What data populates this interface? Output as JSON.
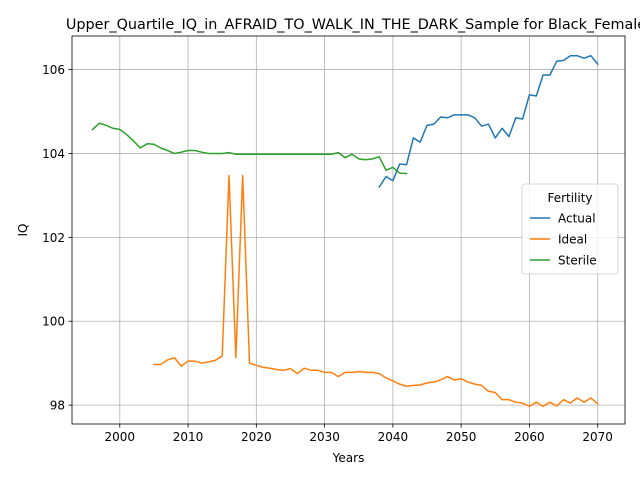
{
  "chart_data": {
    "type": "line",
    "title": "Upper_Quartile_IQ_in_AFRAID_TO_WALK_IN_THE_DARK_Sample for Black_Female",
    "xlabel": "Years",
    "ylabel": "IQ",
    "xlim": [
      1993,
      2074
    ],
    "ylim": [
      97.55,
      106.8
    ],
    "xticks": [
      2000,
      2010,
      2020,
      2030,
      2040,
      2050,
      2060,
      2070
    ],
    "yticks": [
      98,
      100,
      102,
      104,
      106
    ],
    "grid": true,
    "legend": {
      "title": "Fertility",
      "placement": "center-right"
    },
    "series": [
      {
        "name": "Actual",
        "color": "#1f77b4",
        "x": [
          2038,
          2039,
          2040,
          2041,
          2042,
          2043,
          2044,
          2045,
          2046,
          2047,
          2048,
          2049,
          2050,
          2051,
          2052,
          2053,
          2054,
          2055,
          2056,
          2057,
          2058,
          2059,
          2060,
          2061,
          2062,
          2063,
          2064,
          2065,
          2066,
          2067,
          2068,
          2069,
          2070
        ],
        "y": [
          103.2,
          103.45,
          103.35,
          103.75,
          103.73,
          104.37,
          104.27,
          104.67,
          104.7,
          104.87,
          104.85,
          104.92,
          104.92,
          104.92,
          104.85,
          104.65,
          104.7,
          104.37,
          104.6,
          104.4,
          104.85,
          104.82,
          105.4,
          105.37,
          105.87,
          105.87,
          106.2,
          106.22,
          106.33,
          106.33,
          106.27,
          106.33,
          106.13
        ]
      },
      {
        "name": "Ideal",
        "color": "#ff7f0e",
        "x": [
          2005,
          2006,
          2007,
          2008,
          2009,
          2010,
          2011,
          2012,
          2013,
          2014,
          2015,
          2016,
          2017,
          2018,
          2019,
          2020,
          2021,
          2022,
          2023,
          2024,
          2025,
          2026,
          2027,
          2028,
          2029,
          2030,
          2031,
          2032,
          2033,
          2034,
          2035,
          2036,
          2037,
          2038,
          2039,
          2040,
          2041,
          2042,
          2043,
          2044,
          2045,
          2046,
          2047,
          2048,
          2049,
          2050,
          2051,
          2052,
          2053,
          2054,
          2055,
          2056,
          2057,
          2058,
          2059,
          2060,
          2061,
          2062,
          2063,
          2064,
          2065,
          2066,
          2067,
          2068,
          2069,
          2070
        ],
        "y": [
          98.97,
          98.97,
          99.08,
          99.13,
          98.93,
          99.05,
          99.05,
          99.0,
          99.03,
          99.07,
          99.17,
          103.47,
          99.13,
          103.47,
          99.0,
          98.95,
          98.9,
          98.88,
          98.85,
          98.83,
          98.87,
          98.75,
          98.88,
          98.83,
          98.83,
          98.78,
          98.78,
          98.68,
          98.78,
          98.78,
          98.8,
          98.78,
          98.78,
          98.75,
          98.65,
          98.58,
          98.5,
          98.45,
          98.47,
          98.48,
          98.53,
          98.55,
          98.6,
          98.68,
          98.6,
          98.63,
          98.55,
          98.5,
          98.47,
          98.33,
          98.3,
          98.13,
          98.13,
          98.07,
          98.05,
          97.97,
          98.07,
          97.97,
          98.07,
          97.98,
          98.13,
          98.05,
          98.17,
          98.07,
          98.17,
          98.03
        ]
      },
      {
        "name": "Sterile",
        "color": "#2ca02c",
        "x": [
          1996,
          1997,
          1998,
          1999,
          2000,
          2001,
          2002,
          2003,
          2004,
          2005,
          2006,
          2007,
          2008,
          2009,
          2010,
          2011,
          2012,
          2013,
          2014,
          2015,
          2016,
          2017,
          2018,
          2019,
          2020,
          2021,
          2022,
          2023,
          2024,
          2025,
          2026,
          2027,
          2028,
          2029,
          2030,
          2031,
          2032,
          2033,
          2034,
          2035,
          2036,
          2037,
          2038,
          2039,
          2040,
          2041,
          2042
        ],
        "y": [
          104.57,
          104.72,
          104.67,
          104.6,
          104.57,
          104.45,
          104.3,
          104.13,
          104.23,
          104.22,
          104.13,
          104.07,
          104.0,
          104.03,
          104.07,
          104.07,
          104.03,
          104.0,
          104.0,
          104.0,
          104.02,
          103.98,
          103.98,
          103.98,
          103.98,
          103.98,
          103.98,
          103.98,
          103.98,
          103.98,
          103.98,
          103.98,
          103.98,
          103.98,
          103.98,
          103.98,
          104.02,
          103.9,
          103.98,
          103.87,
          103.85,
          103.87,
          103.92,
          103.6,
          103.67,
          103.53,
          103.52
        ]
      }
    ]
  }
}
